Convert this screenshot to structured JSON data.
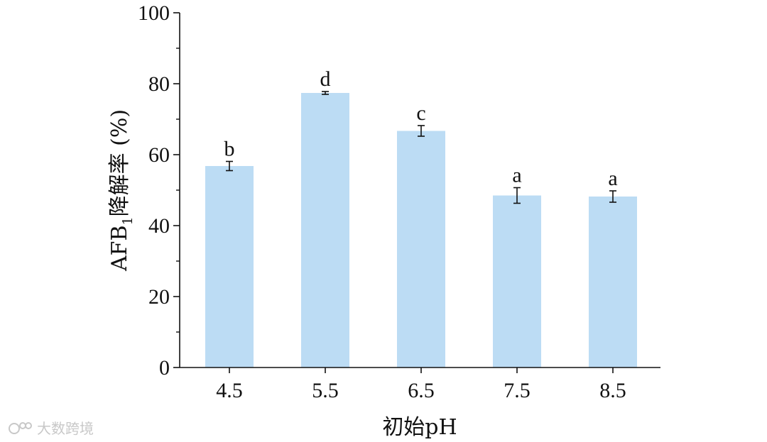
{
  "chart_data": {
    "type": "bar",
    "categories": [
      "4.5",
      "5.5",
      "6.5",
      "7.5",
      "8.5"
    ],
    "values": [
      56.8,
      77.4,
      66.7,
      48.5,
      48.2
    ],
    "errors": [
      1.3,
      0.4,
      1.5,
      2.2,
      1.6
    ],
    "significance": [
      "b",
      "d",
      "c",
      "a",
      "a"
    ],
    "title": "",
    "xlabel": "初始pH",
    "ylabel_main": "AFB",
    "ylabel_sub": "1",
    "ylabel_rest": "降解率 (%)",
    "ylim": [
      0,
      100
    ],
    "yticks": [
      0,
      20,
      40,
      60,
      80,
      100
    ],
    "grid": false,
    "bar_color": "#bcdcf4"
  },
  "watermark": {
    "text": "大数跨境"
  }
}
